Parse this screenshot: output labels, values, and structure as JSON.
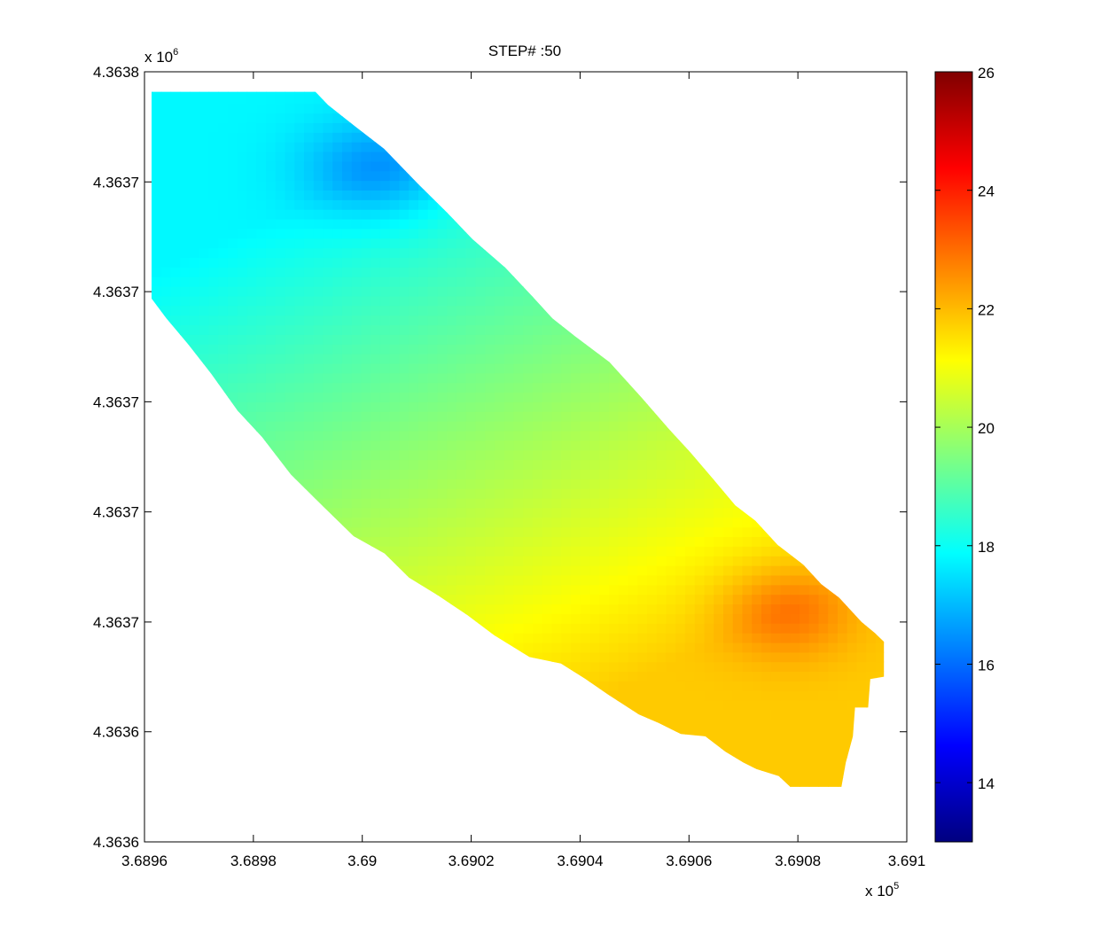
{
  "chart_data": {
    "type": "heatmap",
    "title": "STEP# :50",
    "xlabel": "",
    "ylabel": "",
    "x_exponent_label": "x 10",
    "x_exponent": "5",
    "y_exponent_label": "x 10",
    "y_exponent": "6",
    "xlim": [
      368960,
      369100
    ],
    "ylim": [
      4363600,
      4363800
    ],
    "x_ticks": [
      {
        "value": 368960,
        "label": "3.6896"
      },
      {
        "value": 368980,
        "label": "3.6898"
      },
      {
        "value": 369000,
        "label": "3.69"
      },
      {
        "value": 369020,
        "label": "3.6902"
      },
      {
        "value": 369040,
        "label": "3.6904"
      },
      {
        "value": 369060,
        "label": "3.6906"
      },
      {
        "value": 369080,
        "label": "3.6908"
      },
      {
        "value": 369100,
        "label": "3.691"
      }
    ],
    "y_ticks": [
      {
        "value": 4363800,
        "label": "4.3638"
      },
      {
        "value": 4363771.4,
        "label": "4.3637"
      },
      {
        "value": 4363742.9,
        "label": "4.3637"
      },
      {
        "value": 4363714.3,
        "label": "4.3637"
      },
      {
        "value": 4363685.7,
        "label": "4.3637"
      },
      {
        "value": 4363657.1,
        "label": "4.3637"
      },
      {
        "value": 4363628.6,
        "label": "4.3636"
      },
      {
        "value": 4363600,
        "label": "4.3636"
      }
    ],
    "colorbar": {
      "colormap": "jet",
      "clim": [
        13,
        26
      ],
      "ticks": [
        {
          "value": 14,
          "label": "14"
        },
        {
          "value": 16,
          "label": "16"
        },
        {
          "value": 18,
          "label": "18"
        },
        {
          "value": 20,
          "label": "20"
        },
        {
          "value": 22,
          "label": "22"
        },
        {
          "value": 24,
          "label": "24"
        },
        {
          "value": 26,
          "label": "26"
        }
      ]
    },
    "field": {
      "domain_polygon": [
        [
          368961.3,
          4363794.8
        ],
        [
          368991.4,
          4363794.8
        ],
        [
          368993.7,
          4363791.4
        ],
        [
          368998.8,
          4363785.7
        ],
        [
          369004.0,
          4363780.0
        ],
        [
          369010.3,
          4363770.8
        ],
        [
          369015.6,
          4363763.4
        ],
        [
          369020.2,
          4363756.6
        ],
        [
          369026.3,
          4363749.1
        ],
        [
          369031.2,
          4363741.7
        ],
        [
          369034.9,
          4363736.0
        ],
        [
          369039.0,
          4363731.4
        ],
        [
          369045.4,
          4363724.6
        ],
        [
          369051.3,
          4363715.4
        ],
        [
          369056.2,
          4363707.4
        ],
        [
          369060.3,
          4363701.1
        ],
        [
          369064.4,
          4363694.3
        ],
        [
          369068.5,
          4363687.4
        ],
        [
          369072.2,
          4363683.4
        ],
        [
          369076.3,
          4363677.1
        ],
        [
          369081.0,
          4363672.0
        ],
        [
          369084.3,
          4363666.9
        ],
        [
          369087.6,
          4363663.4
        ],
        [
          369091.7,
          4363657.1
        ],
        [
          369094.1,
          4363654.3
        ],
        [
          369095.8,
          4363652.0
        ],
        [
          369095.8,
          4363642.9
        ],
        [
          369093.3,
          4363642.3
        ],
        [
          369092.9,
          4363634.9
        ],
        [
          369090.5,
          4363634.9
        ],
        [
          369090.1,
          4363627.4
        ],
        [
          369088.8,
          4363620.6
        ],
        [
          369088.0,
          4363614.3
        ],
        [
          369085.1,
          4363614.3
        ],
        [
          369078.6,
          4363614.3
        ],
        [
          369076.5,
          4363617.1
        ],
        [
          369072.4,
          4363618.9
        ],
        [
          369070.0,
          4363620.6
        ],
        [
          369066.7,
          4363623.4
        ],
        [
          369063.0,
          4363627.4
        ],
        [
          369058.5,
          4363628.0
        ],
        [
          369054.4,
          4363630.9
        ],
        [
          369050.8,
          4363633.1
        ],
        [
          369045.1,
          4363638.3
        ],
        [
          369041.0,
          4363642.3
        ],
        [
          369036.5,
          4363646.3
        ],
        [
          369030.7,
          4363648.0
        ],
        [
          369024.2,
          4363653.7
        ],
        [
          369019.3,
          4363658.9
        ],
        [
          369013.9,
          4363664.0
        ],
        [
          369008.6,
          4363668.6
        ],
        [
          369004.1,
          4363674.9
        ],
        [
          368998.4,
          4363679.4
        ],
        [
          368992.6,
          4363687.4
        ],
        [
          368986.9,
          4363695.4
        ],
        [
          368981.6,
          4363705.1
        ],
        [
          368977.1,
          4363712.0
        ],
        [
          368972.2,
          4363721.7
        ],
        [
          368968.1,
          4363729.1
        ],
        [
          368964.0,
          4363736.0
        ],
        [
          368961.3,
          4363741.1
        ]
      ],
      "hotspots": [
        {
          "x": 369003.0,
          "y": 4363775.0,
          "value": 16.5,
          "sx": 14.0,
          "sy": 13.0
        },
        {
          "x": 369078.0,
          "y": 4363660.0,
          "value": 22.9,
          "sx": 12.0,
          "sy": 12.0
        }
      ],
      "trend": {
        "from_value": 17.8,
        "to_value": 21.8
      }
    }
  }
}
